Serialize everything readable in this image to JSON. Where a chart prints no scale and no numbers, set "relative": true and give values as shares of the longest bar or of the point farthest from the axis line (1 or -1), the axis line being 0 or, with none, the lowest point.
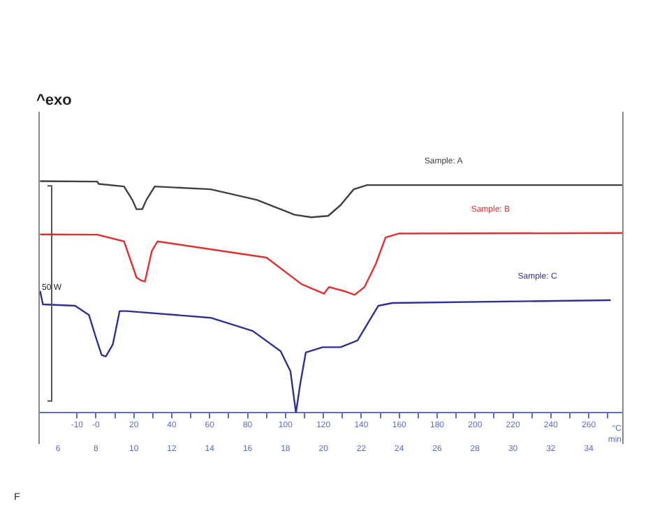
{
  "chart_data": {
    "type": "line",
    "relative": true,
    "xlabel": "°C",
    "x2label": "min",
    "annotations": [
      "^exo",
      "50 W",
      "F"
    ],
    "xlim": [
      -30,
      278
    ],
    "xticks": [
      -10,
      {
        "value": 0,
        "label": "-0"
      },
      {
        "value": 10,
        "label": null
      },
      20,
      {
        "value": 30,
        "label": null
      },
      40,
      {
        "value": 50,
        "label": null
      },
      60,
      {
        "value": 70,
        "label": null
      },
      80,
      {
        "value": 90,
        "label": null
      },
      100,
      {
        "value": 110,
        "label": null
      },
      120,
      {
        "value": 130,
        "label": null
      },
      140,
      {
        "value": 150,
        "label": null
      },
      160,
      {
        "value": 170,
        "label": null
      },
      180,
      {
        "value": 190,
        "label": null
      },
      200,
      {
        "value": 210,
        "label": null
      },
      220,
      {
        "value": 230,
        "label": null
      },
      240,
      {
        "value": 250,
        "label": null
      },
      260,
      {
        "value": 270,
        "label": null
      }
    ],
    "x2lim": [
      5,
      35.8
    ],
    "x2ticks": [
      6,
      8,
      10,
      12,
      14,
      16,
      18,
      20,
      22,
      24,
      26,
      28,
      30,
      32,
      34
    ],
    "legend": false,
    "grid": false,
    "marker": "none",
    "line_style": "solid",
    "series": [
      {
        "name": "Sample: A",
        "color": "#404040",
        "x": [
          -29.5,
          0.7,
          1.5,
          14.8,
          19.2,
          21.4,
          24.4,
          26.6,
          31,
          60.5,
          84.9,
          104.8,
          113.6,
          122.5,
          129,
          136,
          143,
          278
        ],
        "values": [
          1,
          0.998,
          0.988,
          0.977,
          0.919,
          0.879,
          0.879,
          0.919,
          0.977,
          0.965,
          0.919,
          0.855,
          0.844,
          0.85,
          0.896,
          0.965,
          0.983,
          0.983
        ]
      },
      {
        "name": "Sample: B",
        "color": "#e03030",
        "x": [
          -29.5,
          0.7,
          14.8,
          21.4,
          23.6,
          25.8,
          29.5,
          32.5,
          90,
          108.5,
          120.3,
          123,
          130.6,
          136.5,
          141.7,
          147.6,
          152.8,
          160,
          278
        ],
        "values": [
          0.77,
          0.769,
          0.74,
          0.584,
          0.572,
          0.566,
          0.699,
          0.74,
          0.67,
          0.555,
          0.514,
          0.543,
          0.526,
          0.509,
          0.543,
          0.642,
          0.757,
          0.774,
          0.776
        ]
      },
      {
        "name": "Sample: C",
        "color": "#303090",
        "x": [
          -29.5,
          -28,
          -11,
          -3.7,
          0,
          3,
          5.2,
          8.9,
          12.5,
          16.2,
          60.5,
          82.7,
          97.4,
          102.6,
          105.5,
          107.7,
          110.7,
          119.6,
          129,
          138,
          143.9,
          149,
          156.5,
          271.6
        ],
        "values": [
          0.526,
          0.468,
          0.462,
          0.422,
          0.324,
          0.249,
          0.243,
          0.295,
          0.439,
          0.439,
          0.41,
          0.353,
          0.266,
          0.179,
          0,
          0.121,
          0.26,
          0.283,
          0.283,
          0.312,
          0.393,
          0.462,
          0.474,
          0.486
        ]
      }
    ]
  }
}
